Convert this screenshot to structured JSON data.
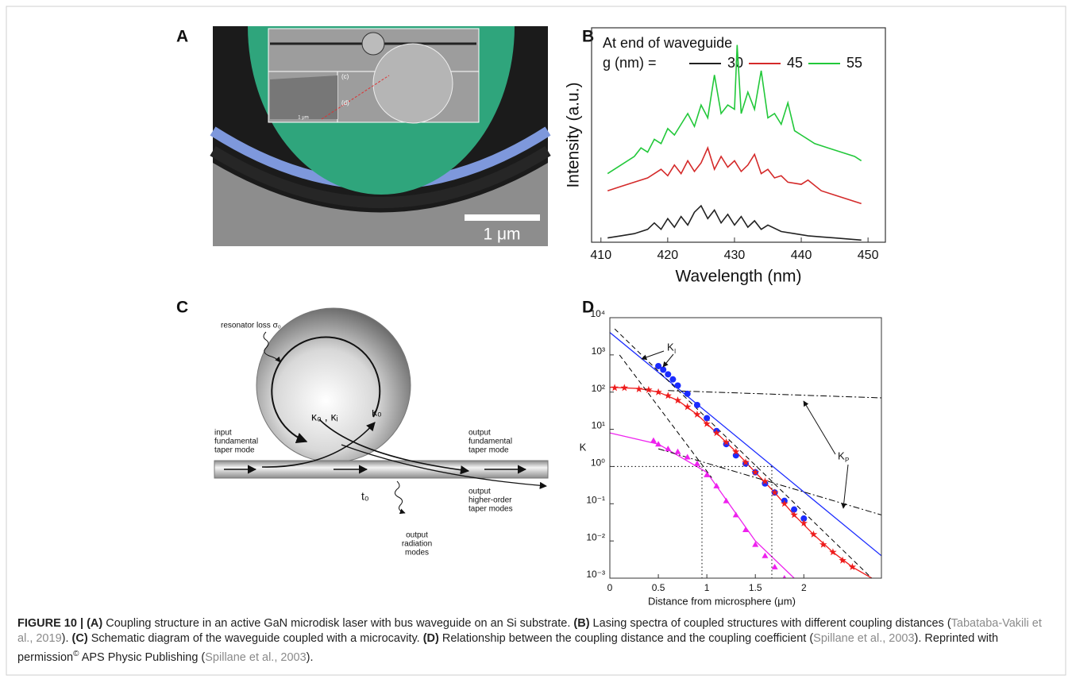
{
  "panel_labels": [
    "A",
    "B",
    "C",
    "D"
  ],
  "panel_a": {
    "scale_bar": "1 μm",
    "inset_labels": [
      "(c)",
      "(d)"
    ],
    "inset_scale": "1 μm"
  },
  "chart_data": [
    {
      "type": "line",
      "xlabel": "Wavelength (nm)",
      "ylabel": "Intensity (a.u.)",
      "legend_title": "At end of waveguide",
      "legend_prefix": "g (nm) =",
      "xlim": [
        408.6,
        452.6
      ],
      "ylim": [
        0,
        100
      ],
      "xticks": [
        410,
        420,
        430,
        440,
        450
      ],
      "series": [
        {
          "name": "30",
          "color": "#222222",
          "x": [
            411,
            413,
            415,
            417,
            418,
            419,
            420,
            421,
            422,
            423,
            424,
            425,
            426,
            427,
            428,
            429,
            430,
            431,
            432,
            433,
            434,
            435,
            437,
            439,
            441,
            443,
            445,
            447,
            449
          ],
          "values": [
            2,
            3,
            4,
            6,
            9,
            6,
            11,
            7,
            12,
            8,
            14,
            17,
            11,
            15,
            9,
            13,
            8,
            12,
            7,
            10,
            6,
            8,
            5,
            4,
            3,
            2.5,
            2,
            1.5,
            1
          ]
        },
        {
          "name": "45",
          "color": "#d42a2a",
          "x": [
            411,
            413,
            415,
            417,
            419,
            420,
            421,
            422,
            423,
            424,
            425,
            426,
            427,
            428,
            429,
            430,
            431,
            432,
            433,
            434,
            435,
            436,
            437,
            438,
            440,
            441,
            443,
            445,
            447,
            449
          ],
          "values": [
            24,
            26,
            28,
            30,
            34,
            31,
            36,
            32,
            38,
            33,
            37,
            44,
            34,
            40,
            35,
            38,
            33,
            36,
            41,
            32,
            34,
            30,
            31,
            28,
            27,
            29,
            24,
            22,
            20,
            18
          ]
        },
        {
          "name": "55",
          "color": "#22c83a",
          "x": [
            411,
            413,
            415,
            416,
            417,
            418,
            419,
            420,
            421,
            422,
            423,
            424,
            425,
            426,
            427,
            428,
            429,
            430,
            430.4,
            431,
            432,
            433,
            434,
            435,
            436,
            437,
            438,
            439,
            440,
            442,
            444,
            446,
            448,
            449
          ],
          "values": [
            32,
            36,
            40,
            44,
            42,
            48,
            46,
            53,
            50,
            55,
            60,
            54,
            64,
            58,
            78,
            60,
            64,
            62,
            92,
            60,
            70,
            62,
            80,
            58,
            60,
            55,
            65,
            52,
            50,
            46,
            44,
            42,
            40,
            38
          ]
        }
      ]
    },
    {
      "type": "scatter",
      "ylabel": "K",
      "xlabel": "Distance from microsphere (μm)",
      "xlim": [
        0,
        2.8
      ],
      "ylim": [
        0.001,
        10000
      ],
      "log_y": true,
      "xticks": [
        0,
        0.5,
        1,
        1.5,
        2
      ],
      "yticks": [
        {
          "value": 10000,
          "label": "10⁴"
        },
        {
          "value": 1000,
          "label": "10³"
        },
        {
          "value": 100,
          "label": "10²"
        },
        {
          "value": 10,
          "label": "10¹"
        },
        {
          "value": 1,
          "label": "10⁰"
        },
        {
          "value": 0.1,
          "label": "10⁻¹"
        },
        {
          "value": 0.01,
          "label": "10⁻²"
        },
        {
          "value": 0.001,
          "label": "10⁻³"
        }
      ],
      "series": [
        {
          "color": "#1a2bff",
          "marker": "circle",
          "x": [
            0.5,
            0.55,
            0.6,
            0.65,
            0.7,
            0.8,
            0.9,
            1.0,
            1.1,
            1.2,
            1.3,
            1.4,
            1.5,
            1.6,
            1.7,
            1.8,
            1.9,
            2.0
          ],
          "values": [
            500,
            400,
            300,
            220,
            150,
            90,
            45,
            20,
            9,
            4,
            2,
            1.2,
            0.7,
            0.35,
            0.2,
            0.12,
            0.07,
            0.04
          ]
        },
        {
          "color": "#ee1c1c",
          "marker": "star",
          "x": [
            0.05,
            0.15,
            0.3,
            0.4,
            0.5,
            0.6,
            0.7,
            0.8,
            0.9,
            1.0,
            1.1,
            1.2,
            1.3,
            1.4,
            1.5,
            1.6,
            1.7,
            1.8,
            1.9,
            2.0,
            2.1,
            2.2,
            2.3,
            2.4,
            2.5
          ],
          "values": [
            130,
            130,
            120,
            115,
            100,
            80,
            60,
            40,
            25,
            14,
            8,
            4.5,
            2.5,
            1.3,
            0.7,
            0.4,
            0.2,
            0.1,
            0.05,
            0.03,
            0.015,
            0.008,
            0.005,
            0.003,
            0.002
          ]
        },
        {
          "color": "#ee22ee",
          "marker": "triangle",
          "x": [
            0.45,
            0.5,
            0.6,
            0.7,
            0.8,
            0.9,
            1.0,
            1.1,
            1.2,
            1.3,
            1.4,
            1.5,
            1.6,
            1.7,
            1.8
          ],
          "values": [
            5,
            4,
            3,
            2.5,
            1.8,
            1.2,
            0.6,
            0.3,
            0.12,
            0.05,
            0.02,
            0.008,
            0.004,
            0.002,
            0.001
          ]
        }
      ],
      "lines": [
        {
          "color": "#1a2bff",
          "dash": "solid",
          "x": [
            0,
            2.8
          ],
          "values": [
            4000,
            0.004
          ]
        },
        {
          "color": "#ee1c1c",
          "dash": "solid",
          "x": [
            0,
            0.3,
            0.5,
            0.7,
            0.9,
            1.1,
            1.3,
            1.5,
            1.7,
            1.9,
            2.1,
            2.3,
            2.5,
            2.7
          ],
          "values": [
            135,
            125,
            100,
            60,
            25,
            8,
            2.5,
            0.7,
            0.2,
            0.05,
            0.015,
            0.005,
            0.002,
            0.001
          ]
        },
        {
          "color": "#ee22ee",
          "dash": "solid",
          "x": [
            0,
            0.5,
            1.0,
            1.5,
            1.9
          ],
          "values": [
            8,
            4,
            0.7,
            0.01,
            0.001
          ]
        },
        {
          "color": "#000000",
          "dash": "dashed",
          "x": [
            0.05,
            2.7
          ],
          "values": [
            5000,
            0.001
          ]
        },
        {
          "color": "#000000",
          "dash": "dashed",
          "x": [
            0.1,
            1.05
          ],
          "values": [
            1000,
            0.5
          ]
        },
        {
          "color": "#000000",
          "dash": "dashdot",
          "x": [
            0.6,
            2.8
          ],
          "values": [
            110,
            70
          ]
        },
        {
          "color": "#000000",
          "dash": "dashdot",
          "x": [
            0.5,
            2.8
          ],
          "values": [
            3,
            0.05
          ]
        },
        {
          "color": "#000000",
          "dash": "dotted",
          "x": [
            0,
            1.67
          ],
          "values": [
            1,
            1
          ]
        },
        {
          "color": "#000000",
          "dash": "dotted",
          "x": [
            0.95,
            0.95
          ],
          "values": [
            1,
            0.001
          ]
        },
        {
          "color": "#000000",
          "dash": "dotted",
          "x": [
            1.67,
            1.67
          ],
          "values": [
            1,
            0.001
          ]
        }
      ],
      "annotations": [
        {
          "text": "K",
          "sub": "I"
        },
        {
          "text": "K",
          "sub": "P"
        }
      ]
    }
  ],
  "diagram": {
    "resonator_loss": "resonator loss σ₀",
    "coupling_in": "κ₀ , κᵢ",
    "coupling_out": "κ₀",
    "input": [
      "input",
      "fundamental",
      "taper mode"
    ],
    "output_fundamental": [
      "output",
      "fundamental",
      "taper mode"
    ],
    "transmission": "t₀",
    "output_higher": [
      "output",
      "higher-order",
      "taper modes"
    ],
    "output_radiation": [
      "output",
      "radiation",
      "modes"
    ]
  },
  "caption": {
    "segments": [
      {
        "text": "FIGURE 10 | ",
        "style": "bold"
      },
      {
        "text": "(A)",
        "style": "bold"
      },
      {
        "text": " Coupling structure in an active GaN microdisk laser with bus waveguide on an Si substrate. "
      },
      {
        "text": "(B)",
        "style": "bold"
      },
      {
        "text": " Lasing spectra of coupled structures with different coupling distances ("
      },
      {
        "text": "Tabataba-Vakili et al., 2019",
        "style": "link"
      },
      {
        "text": "). "
      },
      {
        "text": "(C)",
        "style": "bold"
      },
      {
        "text": " Schematic diagram of the waveguide coupled with a microcavity. "
      },
      {
        "text": "(D)",
        "style": "bold"
      },
      {
        "text": " Relationship between the coupling distance and the coupling coefficient ("
      },
      {
        "text": "Spillane et al., 2003",
        "style": "link"
      },
      {
        "text": "). Reprinted with permission"
      },
      {
        "text": "©",
        "style": "sup"
      },
      {
        "text": " APS Physic Publishing ("
      },
      {
        "text": "Spillane et al., 2003",
        "style": "link"
      },
      {
        "text": ")."
      }
    ]
  }
}
